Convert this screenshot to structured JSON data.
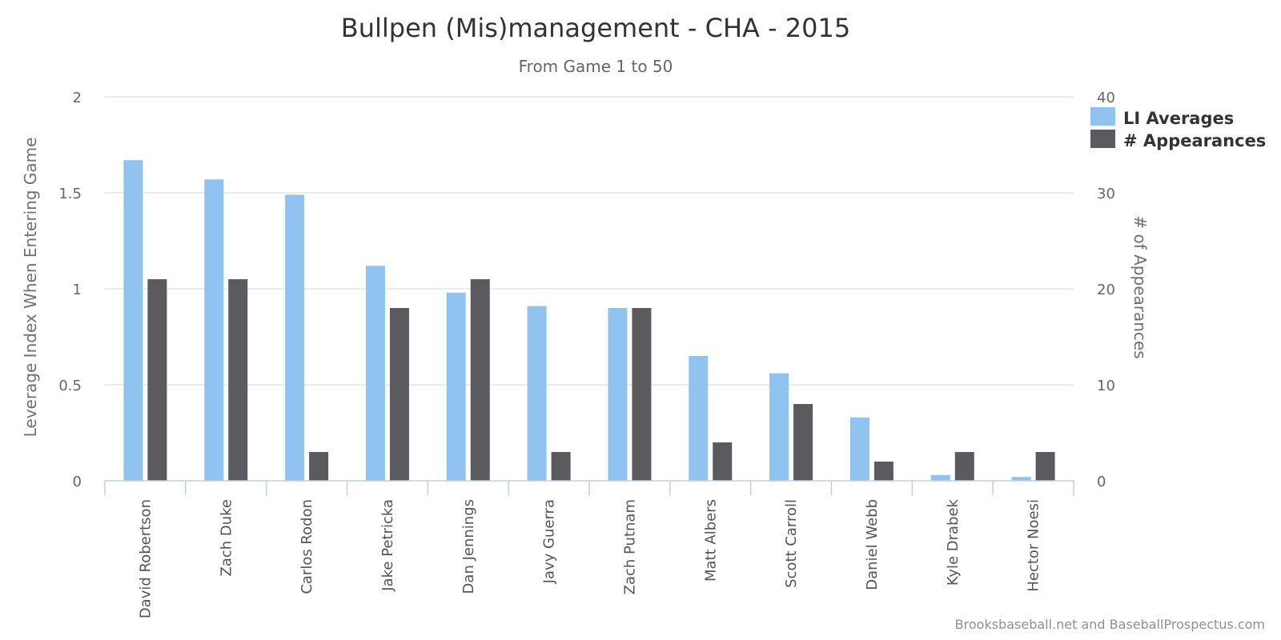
{
  "chart_data": {
    "type": "bar",
    "title": "Bullpen (Mis)management - CHA - 2015",
    "subtitle": "From Game 1 to 50",
    "categories": [
      "David Robertson",
      "Zach Duke",
      "Carlos Rodon",
      "Jake Petricka",
      "Dan Jennings",
      "Javy Guerra",
      "Zach Putnam",
      "Matt Albers",
      "Scott Carroll",
      "Daniel Webb",
      "Kyle Drabek",
      "Hector Noesi"
    ],
    "series": [
      {
        "name": "LI Averages",
        "axis": "left",
        "color": "#90c3f0",
        "values": [
          1.67,
          1.57,
          1.49,
          1.12,
          0.98,
          0.91,
          0.9,
          0.65,
          0.56,
          0.33,
          0.03,
          0.02
        ]
      },
      {
        "name": "# Appearances",
        "axis": "right",
        "color": "#5a5a5f",
        "values": [
          21,
          21,
          3,
          18,
          21,
          3,
          18,
          4,
          8,
          2,
          3,
          3
        ]
      }
    ],
    "ylabel": "Leverage Index When Entering Game",
    "ylabel_right": "# of Appearances",
    "ylim": [
      0,
      2
    ],
    "ylim_right": [
      0,
      40
    ],
    "yticks": [
      "0",
      "0.5",
      "1",
      "1.5",
      "2"
    ],
    "yticks_right": [
      "0",
      "10",
      "20",
      "30",
      "40"
    ],
    "grid": true,
    "legend_position": "top-right",
    "credits": "Brooksbaseball.net and BaseballProspectus.com"
  }
}
